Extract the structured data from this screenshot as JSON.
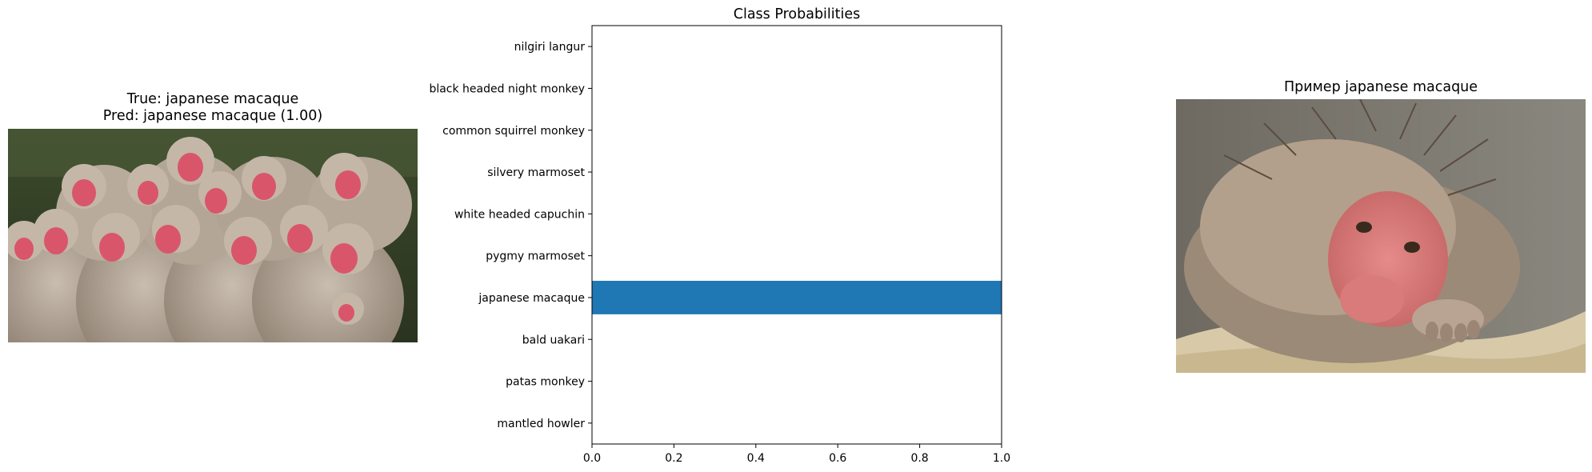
{
  "left_panel": {
    "title_line1": "True: japanese macaque",
    "title_line2": "Pred: japanese macaque (1.00)",
    "image": "photo-group-of-japanese-macaques"
  },
  "right_panel": {
    "title": "Пример japanese macaque",
    "image": "photo-wet-japanese-macaque-resting-on-rock"
  },
  "chart_data": {
    "type": "bar",
    "orientation": "horizontal",
    "title": "Class Probabilities",
    "categories": [
      "nilgiri langur",
      "black headed night monkey",
      "common squirrel monkey",
      "silvery marmoset",
      "white headed capuchin",
      "pygmy marmoset",
      "japanese macaque",
      "bald uakari",
      "patas monkey",
      "mantled howler"
    ],
    "values": [
      0,
      0,
      0,
      0,
      0,
      0,
      1.0,
      0,
      0,
      0
    ],
    "xlim": [
      0,
      1.0
    ],
    "xticks": [
      "0.0",
      "0.2",
      "0.4",
      "0.6",
      "0.8",
      "1.0"
    ],
    "xlabel": "",
    "ylabel": "",
    "bar_color": "#1f77b4",
    "grid": false
  }
}
